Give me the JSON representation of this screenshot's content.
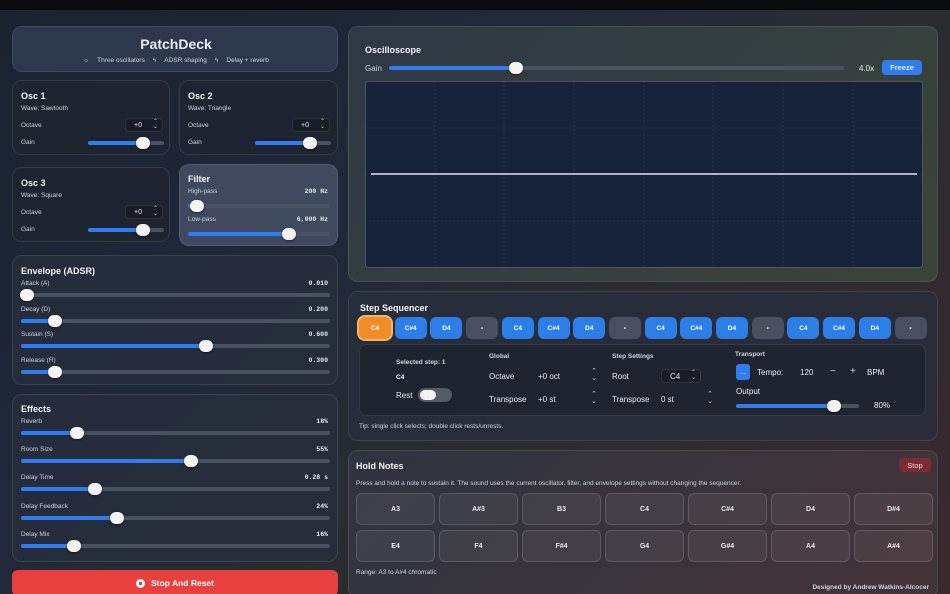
{
  "app": {
    "title": "PatchDeck",
    "tags": [
      "Three oscillators",
      "ADSR shaping",
      "Delay + reverb"
    ]
  },
  "oscillators": [
    {
      "title": "Osc 1",
      "wave": "Wave: Sawtooth",
      "octave_label": "Octave",
      "octave": "+0",
      "gain_label": "Gain",
      "gain": 0.72
    },
    {
      "title": "Osc 2",
      "wave": "Wave: Triangle",
      "octave_label": "Octave",
      "octave": "+0",
      "gain_label": "Gain",
      "gain": 0.72
    },
    {
      "title": "Osc 3",
      "wave": "Wave: Square",
      "octave_label": "Octave",
      "octave": "+0",
      "gain_label": "Gain",
      "gain": 0.72
    }
  ],
  "filter": {
    "title": "Filter",
    "highpass_label": "High-pass",
    "highpass": "200 Hz",
    "highpass_pos": 0.06,
    "lowpass_label": "Low-pass",
    "lowpass": "6,000 Hz",
    "lowpass_pos": 0.71
  },
  "envelope": {
    "title": "Envelope (ADSR)",
    "items": [
      {
        "label": "Attack (A)",
        "value": "0.010",
        "pos": 0.02
      },
      {
        "label": "Decay (D)",
        "value": "0.200",
        "pos": 0.11
      },
      {
        "label": "Sustain (S)",
        "value": "0.600",
        "pos": 0.6
      },
      {
        "label": "Release (R)",
        "value": "0.300",
        "pos": 0.11
      }
    ]
  },
  "effects": {
    "title": "Effects",
    "items": [
      {
        "label": "Reverb",
        "value": "18%",
        "pos": 0.18
      },
      {
        "label": "Room Size",
        "value": "55%",
        "pos": 0.55
      },
      {
        "label": "Delay Time",
        "value": "0.28 s",
        "pos": 0.24
      },
      {
        "label": "Delay Feedback",
        "value": "24%",
        "pos": 0.31
      },
      {
        "label": "Delay Mix",
        "value": "16%",
        "pos": 0.17
      }
    ]
  },
  "stop_reset": "Stop And Reset",
  "oscilloscope": {
    "title": "Oscilloscope",
    "gain_label": "Gain",
    "gain_value": "4.0x",
    "gain_pos": 0.28,
    "freeze": "Freeze"
  },
  "sequencer": {
    "title": "Step Sequencer",
    "steps": [
      "C4",
      "C#4",
      "D4",
      "•",
      "C4",
      "C#4",
      "D4",
      "•",
      "C4",
      "C#4",
      "D4",
      "•",
      "C4",
      "C#4",
      "D4",
      "•"
    ],
    "selected_label": "Selected step: 1",
    "selected_note": "C4",
    "rest_label": "Rest",
    "global_title": "Global",
    "octave_label": "Octave",
    "octave_value": "+0 oct",
    "transpose_label": "Transpose",
    "transpose_value": "+0 st",
    "step_settings_title": "Step Settings",
    "root_label": "Root",
    "root_value": "C4",
    "step_transpose_label": "Transpose",
    "step_transpose_value": "0 st",
    "transport_title": "Transport",
    "play_glyph": "...",
    "tempo_label": "Tempo:",
    "tempo_value": "120",
    "minus": "−",
    "plus": "+",
    "bpm": "BPM",
    "output_label": "Output",
    "output_value": "80%",
    "output_pos": 0.8,
    "tip": "Tip: single click selects; double click rests/unrests."
  },
  "hold": {
    "title": "Hold Notes",
    "stop": "Stop",
    "desc": "Press and hold a note to sustain it. The sound uses the current oscillator, filter, and envelope settings without changing the sequencer.",
    "keys": [
      "A3",
      "A#3",
      "B3",
      "C4",
      "C#4",
      "D4",
      "D#4",
      "E4",
      "F4",
      "F#4",
      "G4",
      "G#4",
      "A4",
      "A#4"
    ],
    "range": "Range: A3 to A#4 chromatic",
    "credit": "Designed by Andrew Watkins-Alcocer"
  },
  "colors": {
    "accent": "#2f7df0",
    "selected_step": "#f08c2a",
    "danger": "#e8403f"
  }
}
